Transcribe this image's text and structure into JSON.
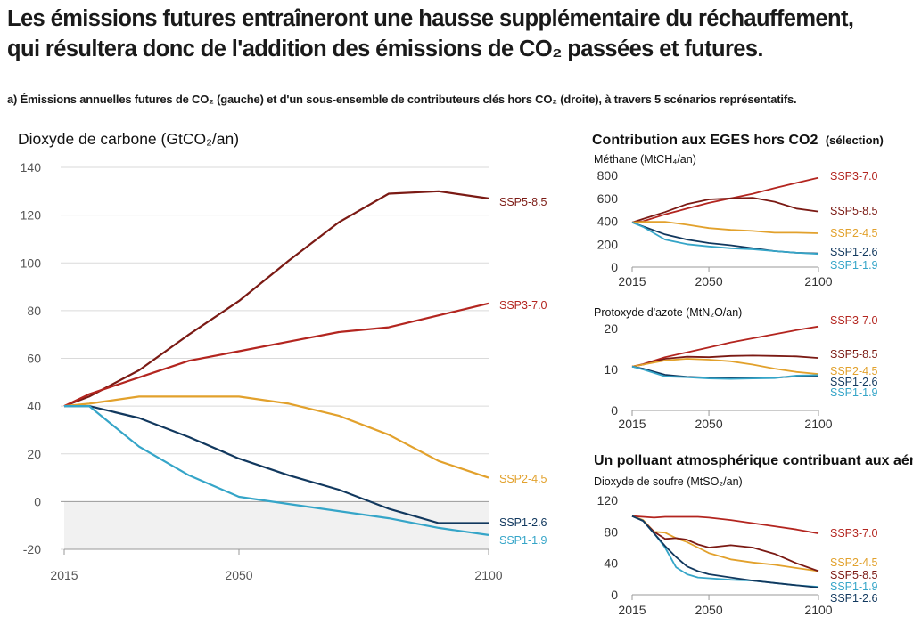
{
  "header": {
    "title_line1": "Les émissions futures entraîneront une hausse supplémentaire du réchauffement,",
    "title_line2": "qui résultera donc de l'addition des émissions de CO₂ passées et futures.",
    "subtitle": "a) Émissions annuelles futures de CO₂ (gauche) et d'un sous-ensemble de contributeurs clés hors CO₂ (droite), à travers 5 scénarios représentatifs."
  },
  "colors": {
    "SSP5-8.5": "#7b1a14",
    "SSP3-7.0": "#b3251f",
    "SSP2-4.5": "#e2a12c",
    "SSP1-2.6": "#11385e",
    "SSP1-1.9": "#35a5c8"
  },
  "chart_data": [
    {
      "type": "line",
      "title": "Dioxyde de carbone (GtCO₂/an)",
      "xlim": [
        2015,
        2100
      ],
      "ylim": [
        -20,
        140
      ],
      "x_ticks": [
        "2015",
        "2050",
        "2100"
      ],
      "y_ticks": [
        "140",
        "120",
        "100",
        "80",
        "60",
        "40",
        "20",
        "0",
        "-20"
      ],
      "x": [
        2015,
        2020,
        2030,
        2040,
        2050,
        2060,
        2070,
        2080,
        2090,
        2100
      ],
      "series": [
        {
          "name": "SSP5-8.5",
          "values": [
            40,
            44,
            55,
            70,
            84,
            101,
            117,
            129,
            130,
            127
          ]
        },
        {
          "name": "SSP3-7.0",
          "values": [
            40,
            45,
            52,
            59,
            63,
            67,
            71,
            73,
            78,
            83
          ]
        },
        {
          "name": "SSP2-4.5",
          "values": [
            40,
            41,
            44,
            44,
            44,
            41,
            36,
            28,
            17,
            10
          ]
        },
        {
          "name": "SSP1-2.6",
          "values": [
            40,
            40,
            35,
            27,
            18,
            11,
            5,
            -3,
            -9,
            -9
          ]
        },
        {
          "name": "SSP1-1.9",
          "values": [
            40,
            40,
            23,
            11,
            2,
            -1,
            -4,
            -7,
            -11,
            -14
          ]
        }
      ]
    },
    {
      "type": "line",
      "title": "Méthane (MtCH₄/an)",
      "xlim": [
        2015,
        2100
      ],
      "ylim": [
        0,
        800
      ],
      "x_ticks": [
        "2015",
        "2050",
        "2100"
      ],
      "y_ticks": [
        "800",
        "600",
        "400",
        "200",
        "0"
      ],
      "x": [
        2015,
        2020,
        2030,
        2040,
        2050,
        2060,
        2070,
        2080,
        2090,
        2100
      ],
      "series": [
        {
          "name": "SSP3-7.0",
          "values": [
            390,
            400,
            460,
            510,
            560,
            600,
            640,
            690,
            735,
            780
          ]
        },
        {
          "name": "SSP5-8.5",
          "values": [
            390,
            420,
            480,
            550,
            590,
            600,
            605,
            570,
            510,
            485
          ]
        },
        {
          "name": "SSP2-4.5",
          "values": [
            390,
            395,
            395,
            370,
            340,
            325,
            315,
            300,
            300,
            295
          ]
        },
        {
          "name": "SSP1-2.6",
          "values": [
            390,
            355,
            285,
            240,
            210,
            190,
            165,
            140,
            125,
            120
          ]
        },
        {
          "name": "SSP1-1.9",
          "values": [
            390,
            350,
            240,
            200,
            180,
            165,
            155,
            140,
            125,
            115
          ]
        }
      ]
    },
    {
      "type": "line",
      "title": "Protoxyde d'azote (MtN₂O/an)",
      "xlim": [
        2015,
        2100
      ],
      "ylim": [
        0,
        20
      ],
      "x_ticks": [
        "2015",
        "2050",
        "2100"
      ],
      "y_ticks": [
        "20",
        "10",
        "0"
      ],
      "x": [
        2015,
        2020,
        2030,
        2040,
        2050,
        2060,
        2070,
        2080,
        2090,
        2100
      ],
      "series": [
        {
          "name": "SSP3-7.0",
          "values": [
            10.7,
            11.3,
            13.0,
            14.2,
            15.4,
            16.6,
            17.6,
            18.6,
            19.6,
            20.5
          ]
        },
        {
          "name": "SSP5-8.5",
          "values": [
            10.7,
            11.2,
            12.6,
            13.1,
            13.0,
            13.3,
            13.4,
            13.3,
            13.2,
            12.8
          ]
        },
        {
          "name": "SSP2-4.5",
          "values": [
            10.7,
            11.2,
            12.2,
            12.6,
            12.4,
            12.0,
            11.2,
            10.2,
            9.4,
            8.9
          ]
        },
        {
          "name": "SSP1-2.6",
          "values": [
            10.7,
            10.2,
            8.7,
            8.2,
            8.0,
            7.9,
            7.9,
            8.0,
            8.3,
            8.4
          ]
        },
        {
          "name": "SSP1-1.9",
          "values": [
            10.7,
            10.0,
            8.3,
            8.1,
            7.8,
            7.7,
            7.8,
            7.9,
            8.5,
            8.6
          ]
        }
      ]
    },
    {
      "type": "line",
      "section_title": "Un polluant atmosphérique contribuant aux aérosols",
      "title": "Dioxyde de soufre (MtSO₂/an)",
      "xlim": [
        2015,
        2100
      ],
      "ylim": [
        0,
        120
      ],
      "x_ticks": [
        "2015",
        "2050",
        "2100"
      ],
      "y_ticks": [
        "120",
        "80",
        "40",
        "0"
      ],
      "x": [
        2015,
        2020,
        2025,
        2030,
        2035,
        2040,
        2045,
        2050,
        2060,
        2070,
        2080,
        2090,
        2100
      ],
      "series": [
        {
          "name": "SSP3-7.0",
          "values": [
            100,
            99,
            98,
            99,
            99,
            99,
            99,
            98,
            95,
            91,
            87,
            83,
            78
          ]
        },
        {
          "name": "SSP2-4.5",
          "values": [
            100,
            95,
            80,
            79,
            72,
            67,
            60,
            53,
            45,
            41,
            38,
            34,
            30
          ]
        },
        {
          "name": "SSP5-8.5",
          "values": [
            100,
            94,
            80,
            71,
            72,
            70,
            64,
            60,
            63,
            60,
            52,
            40,
            30
          ]
        },
        {
          "name": "SSP1-1.9",
          "values": [
            100,
            94,
            78,
            60,
            35,
            26,
            22,
            21,
            19,
            18,
            15,
            12,
            10
          ]
        },
        {
          "name": "SSP1-2.6",
          "values": [
            100,
            94,
            78,
            62,
            48,
            36,
            30,
            26,
            22,
            18,
            15,
            12,
            9
          ]
        }
      ]
    }
  ],
  "extra_titles": {
    "right_panel": "Contribution aux EGES hors CO2",
    "right_panel_note": "(sélection)"
  }
}
